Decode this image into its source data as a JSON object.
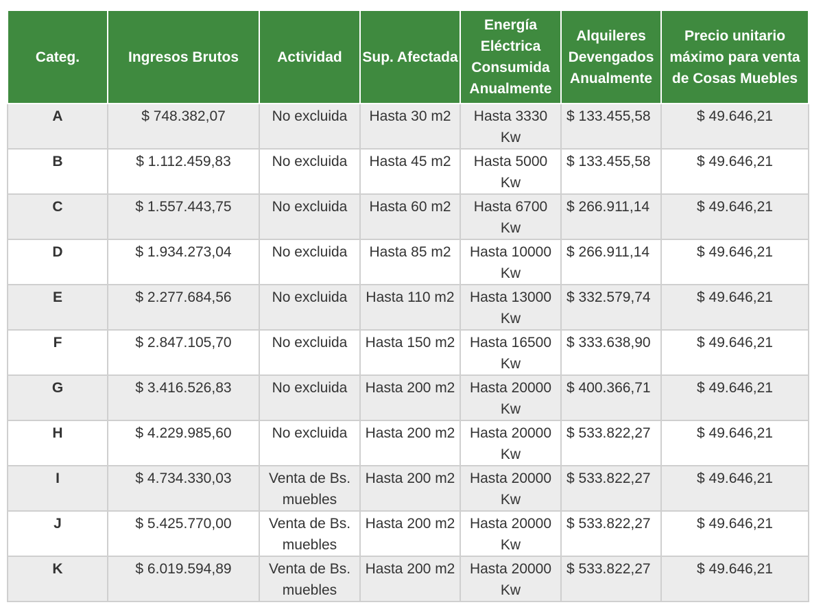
{
  "headers": {
    "categ": "Categ.",
    "ingresos": "Ingresos Brutos",
    "actividad": "Actividad",
    "sup": "Sup. Afectada",
    "energia": "Energía Eléctrica Consumida Anualmente",
    "alquileres": "Alquileres Devengados Anualmente",
    "precio": "Precio unitario máximo para venta de Cosas Muebles"
  },
  "rows": [
    {
      "cat": "A",
      "ingresos": "$ 748.382,07",
      "actividad": "No excluida",
      "sup": "Hasta 30 m2",
      "energia": "Hasta 3330 Kw",
      "alquileres": "$ 133.455,58",
      "precio": "$ 49.646,21"
    },
    {
      "cat": "B",
      "ingresos": "$ 1.112.459,83",
      "actividad": "No excluida",
      "sup": "Hasta 45 m2",
      "energia": "Hasta 5000 Kw",
      "alquileres": "$ 133.455,58",
      "precio": "$ 49.646,21"
    },
    {
      "cat": "C",
      "ingresos": "$ 1.557.443,75",
      "actividad": "No excluida",
      "sup": "Hasta 60 m2",
      "energia": "Hasta 6700 Kw",
      "alquileres": "$ 266.911,14",
      "precio": "$ 49.646,21"
    },
    {
      "cat": "D",
      "ingresos": "$ 1.934.273,04",
      "actividad": "No excluida",
      "sup": "Hasta 85 m2",
      "energia": "Hasta 10000 Kw",
      "alquileres": "$ 266.911,14",
      "precio": "$ 49.646,21"
    },
    {
      "cat": "E",
      "ingresos": "$ 2.277.684,56",
      "actividad": "No excluida",
      "sup": "Hasta 110 m2",
      "energia": "Hasta 13000 Kw",
      "alquileres": "$ 332.579,74",
      "precio": "$ 49.646,21"
    },
    {
      "cat": "F",
      "ingresos": "$ 2.847.105,70",
      "actividad": "No excluida",
      "sup": "Hasta 150 m2",
      "energia": "Hasta 16500 Kw",
      "alquileres": "$ 333.638,90",
      "precio": "$ 49.646,21"
    },
    {
      "cat": "G",
      "ingresos": "$ 3.416.526,83",
      "actividad": "No excluida",
      "sup": "Hasta 200 m2",
      "energia": "Hasta 20000 Kw",
      "alquileres": "$ 400.366,71",
      "precio": "$ 49.646,21"
    },
    {
      "cat": "H",
      "ingresos": "$ 4.229.985,60",
      "actividad": "No excluida",
      "sup": "Hasta 200 m2",
      "energia": "Hasta 20000 Kw",
      "alquileres": "$ 533.822,27",
      "precio": "$ 49.646,21"
    },
    {
      "cat": "I",
      "ingresos": "$ 4.734.330,03",
      "actividad": "Venta de Bs. muebles",
      "sup": "Hasta 200 m2",
      "energia": "Hasta 20000 Kw",
      "alquileres": "$ 533.822,27",
      "precio": "$ 49.646,21"
    },
    {
      "cat": "J",
      "ingresos": "$ 5.425.770,00",
      "actividad": "Venta de Bs. muebles",
      "sup": "Hasta 200 m2",
      "energia": "Hasta 20000 Kw",
      "alquileres": "$ 533.822,27",
      "precio": "$ 49.646,21"
    },
    {
      "cat": "K",
      "ingresos": "$ 6.019.594,89",
      "actividad": "Venta de Bs. muebles",
      "sup": "Hasta 200 m2",
      "energia": "Hasta 20000 Kw",
      "alquileres": "$ 533.822,27",
      "precio": "$ 49.646,21"
    }
  ],
  "colors": {
    "header_bg": "#3f8a3f",
    "header_text": "#ffffff",
    "row_alt_bg": "#ececec",
    "border": "#cfcfcf"
  }
}
